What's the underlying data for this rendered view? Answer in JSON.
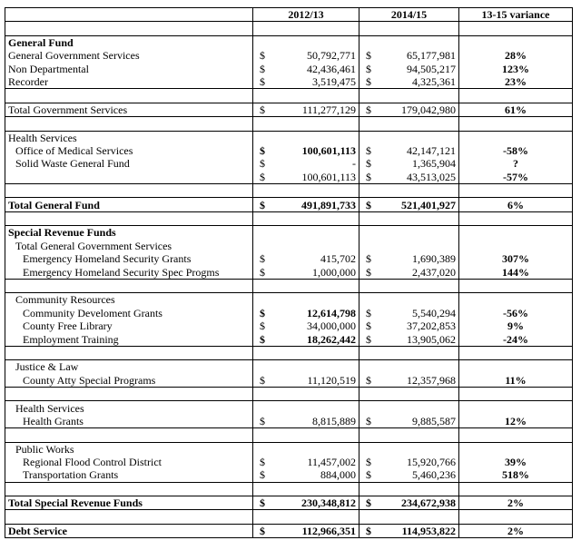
{
  "table": {
    "columns": [
      "2012/13",
      "2014/15",
      "13-15 variance"
    ],
    "rows": [
      {},
      {
        "label": "General Fund",
        "bold": true
      },
      {
        "label": "General Government Services",
        "d1": "$",
        "v1": "50,792,771",
        "d2": "$",
        "v2": "65,177,981",
        "var": "28%"
      },
      {
        "label": "Non Departmental",
        "d1": "$",
        "v1": "42,436,461",
        "d2": "$",
        "v2": "94,505,217",
        "var": "123%"
      },
      {
        "label": "Recorder",
        "d1": "$",
        "v1": "3,519,475",
        "d2": "$",
        "v2": "4,325,361",
        "var": "23%"
      },
      {},
      {
        "label": "Total Government Services",
        "d1": "$",
        "v1": "111,277,129",
        "d2": "$",
        "v2": "179,042,980",
        "var": "61%"
      },
      {},
      {
        "label": "Health Services"
      },
      {
        "label": "Office of Medical Services",
        "indent": 1,
        "bold_first": true,
        "d1": "$",
        "v1": "100,601,113",
        "d2": "$",
        "v2": "42,147,121",
        "var": "-58%"
      },
      {
        "label": "Solid Waste General Fund",
        "indent": 1,
        "d1": "$",
        "v1": "-",
        "d2": "$",
        "v2": "1,365,904",
        "var": "?"
      },
      {
        "d1": "$",
        "v1": "100,601,113",
        "d2": "$",
        "v2": "43,513,025",
        "var": "-57%"
      },
      {},
      {
        "label": "Total General Fund",
        "bold": true,
        "d1": "$",
        "v1": "491,891,733",
        "d2": "$",
        "v2": "521,401,927",
        "var": "6%"
      },
      {},
      {
        "label": "Special Revenue Funds",
        "bold": true
      },
      {
        "label": "Total General Government Services",
        "indent": 1
      },
      {
        "label": "Emergency Homeland Security Grants",
        "indent": 2,
        "d1": "$",
        "v1": "415,702",
        "d2": "$",
        "v2": "1,690,389",
        "var": "307%"
      },
      {
        "label": "Emergency Homeland Security Spec Progms",
        "indent": 2,
        "d1": "$",
        "v1": "1,000,000",
        "d2": "$",
        "v2": "2,437,020",
        "var": "144%"
      },
      {},
      {
        "label": "Community Resources",
        "indent": 1
      },
      {
        "label": "Community Develoment Grants",
        "indent": 2,
        "bold_first": true,
        "d1": "$",
        "v1": "12,614,798",
        "d2": "$",
        "v2": "5,540,294",
        "var": "-56%"
      },
      {
        "label": "County Free Library",
        "indent": 2,
        "d1": "$",
        "v1": "34,000,000",
        "d2": "$",
        "v2": "37,202,853",
        "var": "9%"
      },
      {
        "label": "Employment Training",
        "indent": 2,
        "bold_first": true,
        "d1": "$",
        "v1": "18,262,442",
        "d2": "$",
        "v2": "13,905,062",
        "var": "-24%"
      },
      {},
      {
        "label": "Justice & Law",
        "indent": 1
      },
      {
        "label": "County Atty Special Programs",
        "indent": 2,
        "d1": "$",
        "v1": "11,120,519",
        "d2": "$",
        "v2": "12,357,968",
        "var": "11%"
      },
      {},
      {
        "label": "Health Services",
        "indent": 1
      },
      {
        "label": "Health Grants",
        "indent": 2,
        "d1": "$",
        "v1": "8,815,889",
        "d2": "$",
        "v2": "9,885,587",
        "var": "12%"
      },
      {},
      {
        "label": "Public Works",
        "indent": 1
      },
      {
        "label": "Regional Flood Control District",
        "indent": 2,
        "d1": "$",
        "v1": "11,457,002",
        "d2": "$",
        "v2": "15,920,766",
        "var": "39%"
      },
      {
        "label": "Transportation Grants",
        "indent": 2,
        "d1": "$",
        "v1": "884,000",
        "d2": "$",
        "v2": "5,460,236",
        "var": "518%"
      },
      {},
      {
        "label": "Total Special Revenue Funds",
        "bold": true,
        "d1": "$",
        "v1": "230,348,812",
        "d2": "$",
        "v2": "234,672,938",
        "var": "2%"
      },
      {},
      {
        "label": "Debt Service",
        "bold": true,
        "d1": "$",
        "v1": "112,966,351",
        "d2": "$",
        "v2": "114,953,822",
        "var": "2%"
      }
    ]
  }
}
